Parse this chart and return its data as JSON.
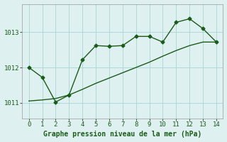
{
  "series1_x": [
    0,
    1,
    2,
    3,
    4,
    5,
    6,
    7,
    8,
    9,
    10,
    11,
    12,
    13,
    14
  ],
  "series1_y": [
    1012.0,
    1011.72,
    1011.02,
    1011.22,
    1012.22,
    1012.62,
    1012.6,
    1012.62,
    1012.88,
    1012.88,
    1012.72,
    1013.28,
    1013.38,
    1013.1,
    1012.72
  ],
  "series2_x": [
    0,
    1,
    2,
    3,
    4,
    5,
    6,
    7,
    8,
    9,
    10,
    11,
    12,
    13,
    14
  ],
  "series2_y": [
    1011.05,
    1011.08,
    1011.12,
    1011.22,
    1011.38,
    1011.55,
    1011.7,
    1011.85,
    1012.0,
    1012.15,
    1012.32,
    1012.48,
    1012.62,
    1012.72,
    1012.72
  ],
  "line_color": "#1a5c1a",
  "bg_color": "#dff0f0",
  "grid_color": "#b0d8d8",
  "xlabel": "Graphe pression niveau de la mer (hPa)",
  "yticks": [
    1011,
    1012,
    1013
  ],
  "xticks": [
    0,
    1,
    2,
    3,
    4,
    5,
    6,
    7,
    8,
    9,
    10,
    11,
    12,
    13,
    14
  ],
  "xlim": [
    -0.5,
    14.5
  ],
  "ylim": [
    1010.55,
    1013.8
  ],
  "marker": "D",
  "markersize": 2.5,
  "linewidth": 1.0,
  "xlabel_fontsize": 7,
  "tick_fontsize": 6.5
}
